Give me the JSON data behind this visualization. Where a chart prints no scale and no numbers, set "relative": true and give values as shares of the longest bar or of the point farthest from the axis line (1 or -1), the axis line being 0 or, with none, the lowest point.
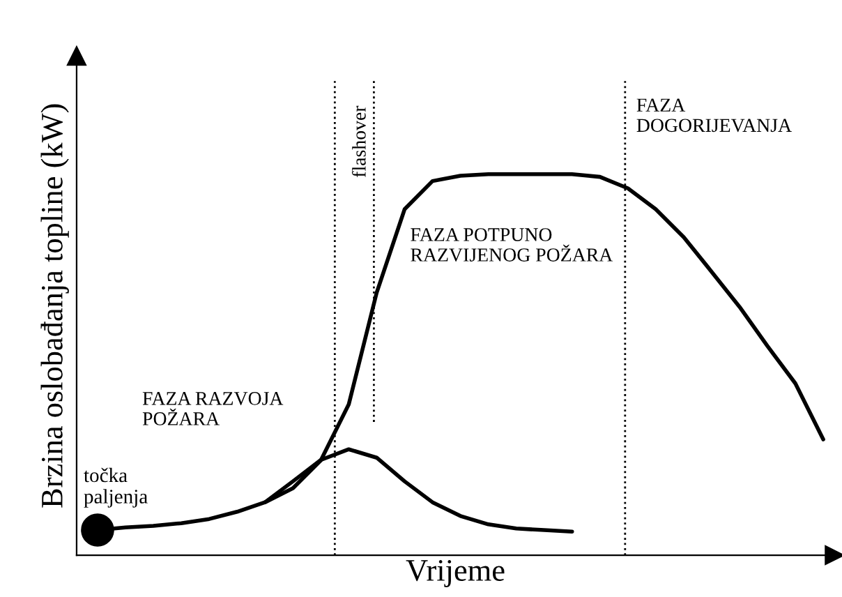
{
  "chart_data": {
    "type": "line",
    "relative": true,
    "xlabel": "Vrijeme",
    "ylabel": "Brzina oslobađanja topline (kW)",
    "categories": [
      null,
      null,
      null,
      null,
      null,
      null,
      null,
      null,
      null,
      null,
      null,
      null,
      null,
      null,
      null,
      null,
      null,
      null,
      null,
      null,
      null,
      null,
      null,
      null,
      null,
      null,
      null
    ],
    "series": [
      {
        "color": "#000000",
        "values": [
          0.066,
          0.073,
          0.077,
          0.084,
          0.095,
          0.114,
          0.139,
          0.176,
          0.249,
          0.396,
          0.689,
          0.908,
          0.982,
          0.996,
          1,
          1,
          1,
          1,
          0.993,
          0.963,
          0.908,
          0.835,
          0.744,
          0.652,
          0.549,
          0.451,
          0.304
        ]
      },
      {
        "color": "#000000",
        "values": [
          null,
          null,
          null,
          null,
          null,
          null,
          0.139,
          0.194,
          0.25,
          0.278,
          0.256,
          0.194,
          0.139,
          0.103,
          0.081,
          0.07,
          0.066,
          0.062,
          null,
          null,
          null,
          null,
          null,
          null,
          null,
          null,
          null
        ]
      }
    ],
    "annotations": [
      "točka\npaljenja",
      "FAZA RAZVOJA\nPOŽARA",
      "FAZA POTPUNO\nRAZVIJENOG POŽARA",
      "FAZA\nDOGORIJEVANJA",
      "flashover"
    ],
    "line_style": "solid",
    "legend": false
  }
}
